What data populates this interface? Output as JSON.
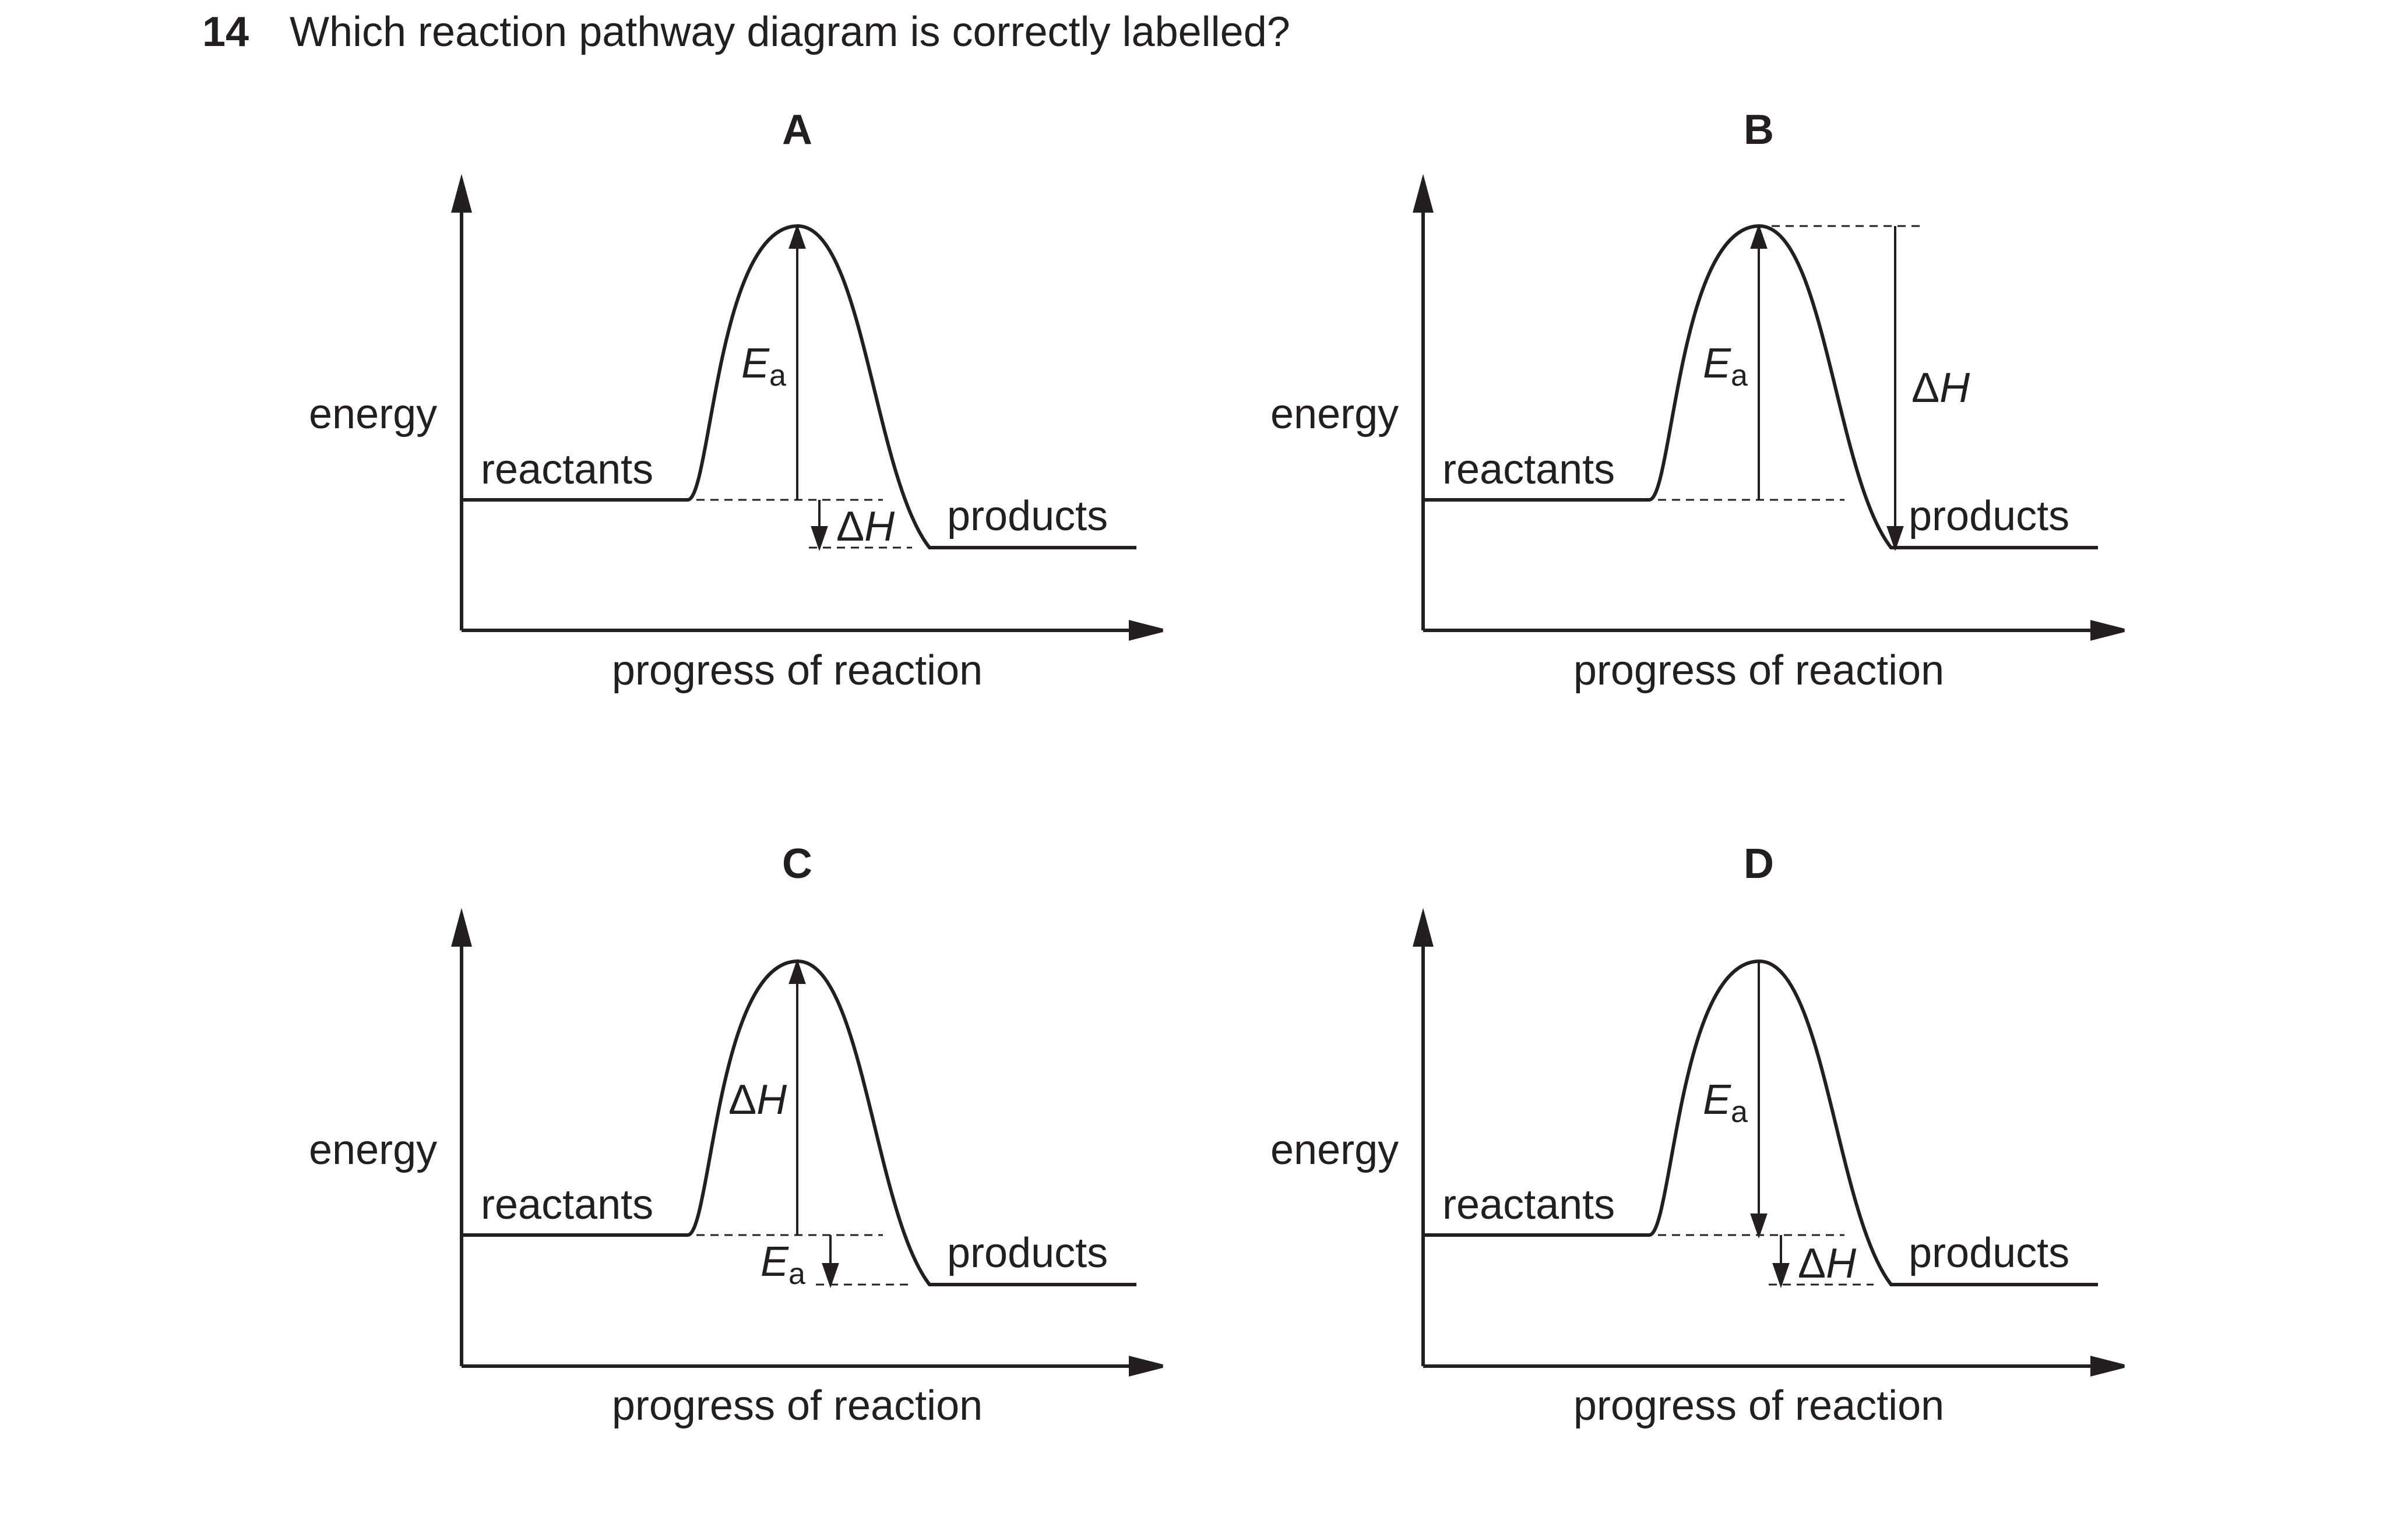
{
  "question": {
    "number": "14",
    "text": "Which reaction pathway diagram is correctly labelled?"
  },
  "axis_labels": {
    "y": "energy",
    "x": "progress of reaction"
  },
  "curve_labels": {
    "reactants": "reactants",
    "products": "products"
  },
  "symbols": {
    "activation_energy_main": "E",
    "activation_energy_sub": "a",
    "enthalpy_delta": "Δ",
    "enthalpy_main": "H"
  },
  "options": [
    {
      "letter": "A",
      "ea_arrow": "reactants to peak",
      "dh_arrow": "reactants to products"
    },
    {
      "letter": "B",
      "ea_arrow": "reactants to peak",
      "dh_arrow": "peak to products"
    },
    {
      "letter": "C",
      "ea_arrow": "reactants to products",
      "dh_arrow": "reactants to peak"
    },
    {
      "letter": "D",
      "ea_arrow": "peak to reactants",
      "dh_arrow": "reactants to products"
    }
  ]
}
